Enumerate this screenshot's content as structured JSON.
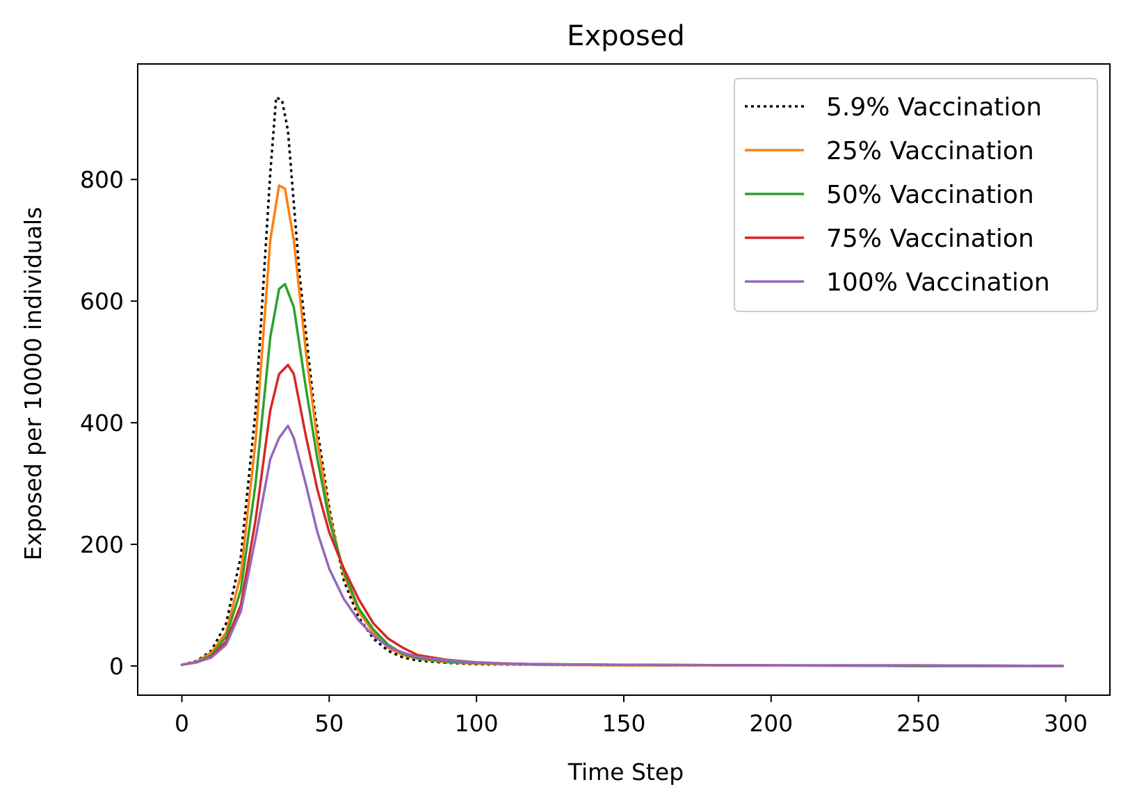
{
  "chart_data": {
    "type": "line",
    "title": "Exposed",
    "xlabel": "Time Step",
    "ylabel": "Exposed per 10000 individuals",
    "xlim": [
      -15,
      315
    ],
    "ylim": [
      -48,
      990
    ],
    "xticks": [
      0,
      50,
      100,
      150,
      200,
      250,
      300
    ],
    "yticks": [
      0,
      200,
      400,
      600,
      800
    ],
    "legend_position": "top-right",
    "series": [
      {
        "name": "5.9% Vaccination",
        "color": "#000000",
        "dash": "dotted",
        "points": [
          [
            0,
            2
          ],
          [
            5,
            8
          ],
          [
            10,
            25
          ],
          [
            15,
            70
          ],
          [
            20,
            180
          ],
          [
            25,
            420
          ],
          [
            30,
            810
          ],
          [
            32,
            935
          ],
          [
            34,
            930
          ],
          [
            36,
            880
          ],
          [
            40,
            640
          ],
          [
            45,
            420
          ],
          [
            50,
            260
          ],
          [
            55,
            140
          ],
          [
            60,
            80
          ],
          [
            65,
            45
          ],
          [
            70,
            25
          ],
          [
            75,
            14
          ],
          [
            80,
            9
          ],
          [
            90,
            5
          ],
          [
            100,
            3
          ],
          [
            120,
            2
          ],
          [
            150,
            1
          ],
          [
            200,
            1
          ],
          [
            250,
            0
          ],
          [
            299,
            0
          ]
        ]
      },
      {
        "name": "25% Vaccination",
        "color": "#ff7f0e",
        "dash": "solid",
        "points": [
          [
            0,
            2
          ],
          [
            5,
            7
          ],
          [
            10,
            22
          ],
          [
            15,
            55
          ],
          [
            20,
            150
          ],
          [
            25,
            370
          ],
          [
            30,
            700
          ],
          [
            33,
            790
          ],
          [
            35,
            785
          ],
          [
            38,
            700
          ],
          [
            42,
            520
          ],
          [
            46,
            370
          ],
          [
            50,
            250
          ],
          [
            55,
            150
          ],
          [
            60,
            90
          ],
          [
            65,
            55
          ],
          [
            70,
            30
          ],
          [
            75,
            18
          ],
          [
            80,
            12
          ],
          [
            90,
            6
          ],
          [
            100,
            4
          ],
          [
            120,
            2
          ],
          [
            150,
            1
          ],
          [
            200,
            1
          ],
          [
            250,
            0
          ],
          [
            299,
            0
          ]
        ]
      },
      {
        "name": "50% Vaccination",
        "color": "#2ca02c",
        "dash": "solid",
        "points": [
          [
            0,
            2
          ],
          [
            5,
            6
          ],
          [
            10,
            18
          ],
          [
            15,
            48
          ],
          [
            20,
            125
          ],
          [
            25,
            300
          ],
          [
            30,
            540
          ],
          [
            33,
            620
          ],
          [
            35,
            628
          ],
          [
            38,
            590
          ],
          [
            42,
            460
          ],
          [
            46,
            340
          ],
          [
            50,
            240
          ],
          [
            55,
            155
          ],
          [
            60,
            95
          ],
          [
            65,
            60
          ],
          [
            70,
            35
          ],
          [
            75,
            20
          ],
          [
            80,
            13
          ],
          [
            90,
            7
          ],
          [
            100,
            5
          ],
          [
            120,
            3
          ],
          [
            150,
            2
          ],
          [
            200,
            1
          ],
          [
            250,
            0
          ],
          [
            299,
            0
          ]
        ]
      },
      {
        "name": "75% Vaccination",
        "color": "#d62728",
        "dash": "solid",
        "points": [
          [
            0,
            2
          ],
          [
            5,
            6
          ],
          [
            10,
            15
          ],
          [
            15,
            40
          ],
          [
            20,
            100
          ],
          [
            25,
            240
          ],
          [
            30,
            420
          ],
          [
            33,
            480
          ],
          [
            36,
            495
          ],
          [
            38,
            480
          ],
          [
            42,
            380
          ],
          [
            46,
            290
          ],
          [
            50,
            220
          ],
          [
            55,
            160
          ],
          [
            60,
            110
          ],
          [
            65,
            70
          ],
          [
            70,
            45
          ],
          [
            75,
            30
          ],
          [
            80,
            18
          ],
          [
            90,
            10
          ],
          [
            100,
            6
          ],
          [
            110,
            4
          ],
          [
            120,
            3
          ],
          [
            150,
            2
          ],
          [
            200,
            1
          ],
          [
            250,
            1
          ],
          [
            299,
            0
          ]
        ]
      },
      {
        "name": "100% Vaccination",
        "color": "#9467bd",
        "dash": "solid",
        "points": [
          [
            0,
            2
          ],
          [
            5,
            6
          ],
          [
            10,
            14
          ],
          [
            15,
            35
          ],
          [
            20,
            90
          ],
          [
            25,
            210
          ],
          [
            30,
            340
          ],
          [
            33,
            375
          ],
          [
            36,
            395
          ],
          [
            38,
            375
          ],
          [
            42,
            300
          ],
          [
            46,
            220
          ],
          [
            50,
            160
          ],
          [
            55,
            110
          ],
          [
            60,
            75
          ],
          [
            65,
            50
          ],
          [
            70,
            32
          ],
          [
            75,
            22
          ],
          [
            80,
            15
          ],
          [
            90,
            9
          ],
          [
            100,
            6
          ],
          [
            110,
            4
          ],
          [
            120,
            3
          ],
          [
            150,
            2
          ],
          [
            200,
            1
          ],
          [
            250,
            1
          ],
          [
            299,
            0
          ]
        ]
      }
    ]
  }
}
